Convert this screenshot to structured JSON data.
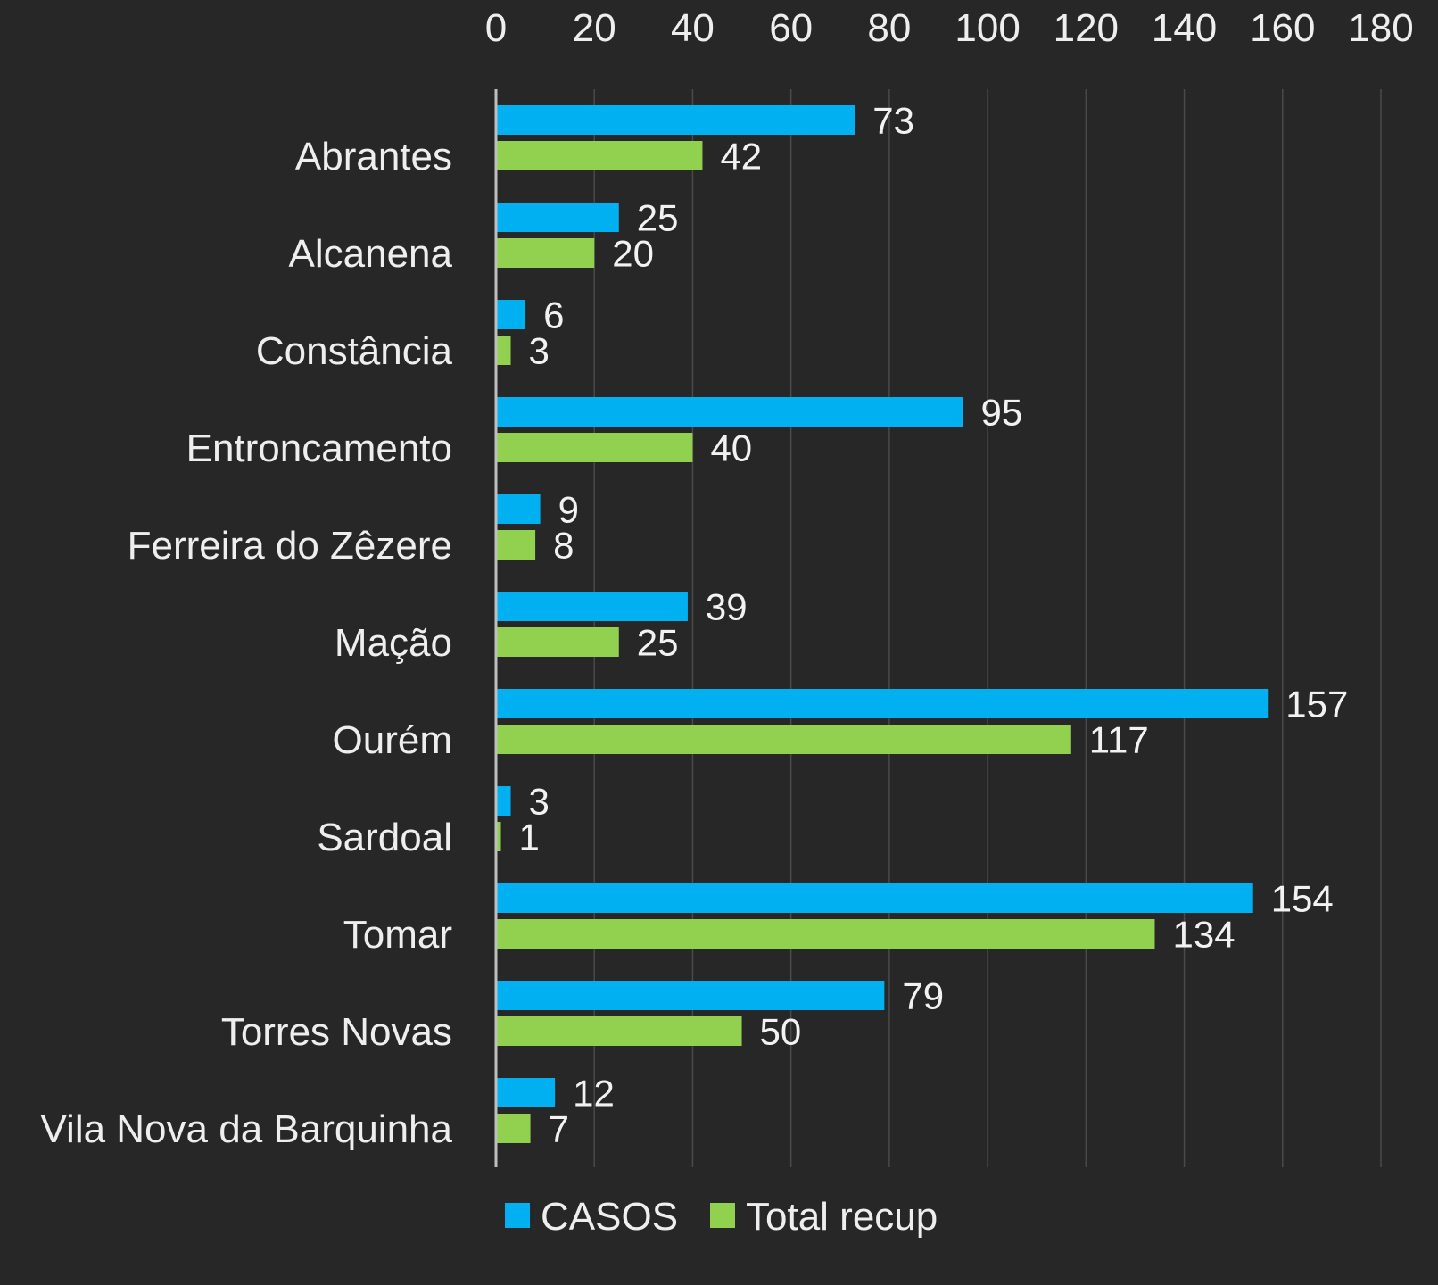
{
  "chart_data": {
    "type": "bar",
    "orientation": "horizontal",
    "categories": [
      "Abrantes",
      "Alcanena",
      "Constância",
      "Entroncamento",
      "Ferreira do Zêzere",
      "Mação",
      "Ourém",
      "Sardoal",
      "Tomar",
      "Torres Novas",
      "Vila Nova da Barquinha"
    ],
    "series": [
      {
        "name": "CASOS",
        "color": "#00b0f0",
        "values": [
          73,
          25,
          6,
          95,
          9,
          39,
          157,
          3,
          154,
          79,
          12
        ]
      },
      {
        "name": "Total recup",
        "color": "#92d050",
        "values": [
          42,
          20,
          3,
          40,
          8,
          25,
          117,
          1,
          134,
          50,
          7
        ]
      }
    ],
    "xlim": [
      0,
      180
    ],
    "xticks": [
      "0",
      "20",
      "40",
      "60",
      "80",
      "100",
      "120",
      "140",
      "160",
      "180"
    ],
    "x_axis_position": "top",
    "grid": true,
    "legend": "bottom",
    "data_labels": true,
    "background": "#272727"
  }
}
